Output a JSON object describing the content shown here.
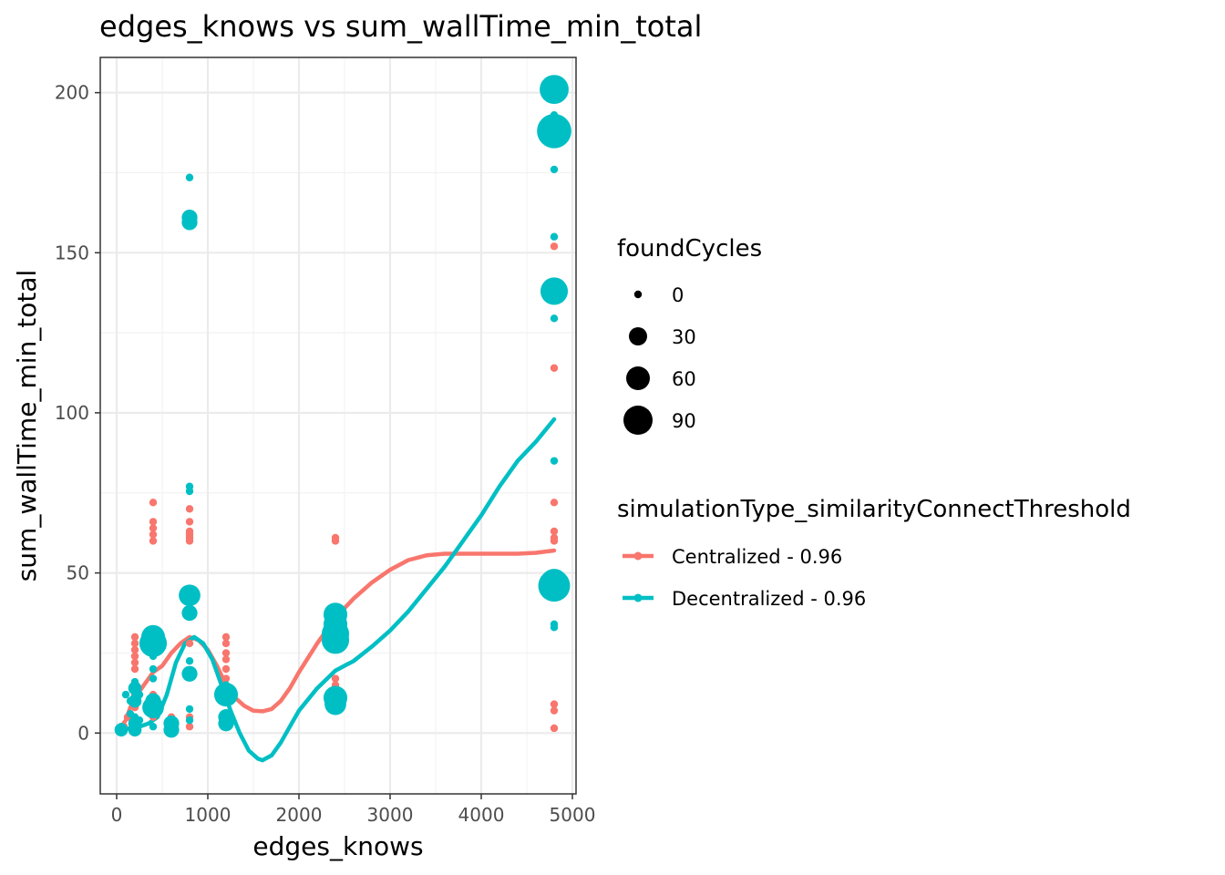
{
  "chart_data": {
    "type": "scatter",
    "title": "edges_knows  vs  sum_wallTime_min_total",
    "xlabel": "edges_knows",
    "ylabel": "sum_wallTime_min_total",
    "xlim": [
      -180,
      5040
    ],
    "ylim": [
      -19,
      211
    ],
    "x_ticks": [
      0,
      1000,
      2000,
      3000,
      4000,
      5000
    ],
    "x_tick_labels": [
      "0",
      "1000",
      "2000",
      "3000",
      "4000",
      "5000"
    ],
    "y_ticks": [
      0,
      50,
      100,
      150,
      200
    ],
    "y_tick_labels": [
      "0",
      "50",
      "100",
      "150",
      "200"
    ],
    "grid": true,
    "legend_position": "right",
    "size_legend": {
      "title": "foundCycles",
      "entries": [
        {
          "label": "0",
          "value": 0
        },
        {
          "label": "30",
          "value": 30
        },
        {
          "label": "60",
          "value": 60
        },
        {
          "label": "90",
          "value": 90
        }
      ]
    },
    "series": [
      {
        "name": "Centralized - 0.96",
        "color": "#f8766d",
        "points": [
          {
            "x": 50,
            "y": 1,
            "c": 0
          },
          {
            "x": 80,
            "y": 2,
            "c": 0
          },
          {
            "x": 120,
            "y": 5,
            "c": 0
          },
          {
            "x": 200,
            "y": 30,
            "c": 0
          },
          {
            "x": 200,
            "y": 28,
            "c": 0
          },
          {
            "x": 200,
            "y": 26,
            "c": 0
          },
          {
            "x": 200,
            "y": 24,
            "c": 0
          },
          {
            "x": 200,
            "y": 22,
            "c": 0
          },
          {
            "x": 200,
            "y": 20,
            "c": 0
          },
          {
            "x": 200,
            "y": 15,
            "c": 0
          },
          {
            "x": 200,
            "y": 12,
            "c": 0
          },
          {
            "x": 200,
            "y": 8,
            "c": 0
          },
          {
            "x": 200,
            "y": 4,
            "c": 0
          },
          {
            "x": 400,
            "y": 72,
            "c": 0
          },
          {
            "x": 400,
            "y": 66,
            "c": 0
          },
          {
            "x": 400,
            "y": 64,
            "c": 0
          },
          {
            "x": 400,
            "y": 62,
            "c": 0
          },
          {
            "x": 400,
            "y": 60,
            "c": 0
          },
          {
            "x": 400,
            "y": 30,
            "c": 0
          },
          {
            "x": 400,
            "y": 12,
            "c": 0
          },
          {
            "x": 400,
            "y": 5,
            "c": 0
          },
          {
            "x": 600,
            "y": 5,
            "c": 0
          },
          {
            "x": 600,
            "y": 3,
            "c": 0
          },
          {
            "x": 800,
            "y": 70,
            "c": 0
          },
          {
            "x": 800,
            "y": 66,
            "c": 0
          },
          {
            "x": 800,
            "y": 63,
            "c": 0
          },
          {
            "x": 800,
            "y": 62,
            "c": 0
          },
          {
            "x": 800,
            "y": 61,
            "c": 0
          },
          {
            "x": 800,
            "y": 60,
            "c": 0
          },
          {
            "x": 800,
            "y": 28,
            "c": 0
          },
          {
            "x": 800,
            "y": 5,
            "c": 0
          },
          {
            "x": 800,
            "y": 2,
            "c": 0
          },
          {
            "x": 1200,
            "y": 30,
            "c": 0
          },
          {
            "x": 1200,
            "y": 28,
            "c": 0
          },
          {
            "x": 1200,
            "y": 25,
            "c": 0
          },
          {
            "x": 1200,
            "y": 23,
            "c": 0
          },
          {
            "x": 1200,
            "y": 20,
            "c": 0
          },
          {
            "x": 1200,
            "y": 17,
            "c": 0
          },
          {
            "x": 1200,
            "y": 10,
            "c": 0
          },
          {
            "x": 2400,
            "y": 61,
            "c": 0
          },
          {
            "x": 2400,
            "y": 60,
            "c": 0
          },
          {
            "x": 2400,
            "y": 17,
            "c": 0
          },
          {
            "x": 2400,
            "y": 15,
            "c": 0
          },
          {
            "x": 2400,
            "y": 13,
            "c": 0
          },
          {
            "x": 4800,
            "y": 152,
            "c": 0
          },
          {
            "x": 4800,
            "y": 114,
            "c": 0
          },
          {
            "x": 4800,
            "y": 72,
            "c": 0
          },
          {
            "x": 4800,
            "y": 63,
            "c": 0
          },
          {
            "x": 4800,
            "y": 61,
            "c": 0
          },
          {
            "x": 4800,
            "y": 60,
            "c": 0
          },
          {
            "x": 4800,
            "y": 9,
            "c": 0
          },
          {
            "x": 4800,
            "y": 7,
            "c": 0
          },
          {
            "x": 4800,
            "y": 1.5,
            "c": 0
          }
        ],
        "smooth": [
          {
            "x": 50,
            "y": 2
          },
          {
            "x": 100,
            "y": 4
          },
          {
            "x": 150,
            "y": 8
          },
          {
            "x": 200,
            "y": 11
          },
          {
            "x": 300,
            "y": 15
          },
          {
            "x": 400,
            "y": 19
          },
          {
            "x": 500,
            "y": 21
          },
          {
            "x": 600,
            "y": 25
          },
          {
            "x": 700,
            "y": 28
          },
          {
            "x": 800,
            "y": 30
          },
          {
            "x": 900,
            "y": 29
          },
          {
            "x": 1000,
            "y": 26
          },
          {
            "x": 1100,
            "y": 21
          },
          {
            "x": 1200,
            "y": 15
          },
          {
            "x": 1300,
            "y": 11
          },
          {
            "x": 1400,
            "y": 8.5
          },
          {
            "x": 1500,
            "y": 7
          },
          {
            "x": 1600,
            "y": 6.8
          },
          {
            "x": 1700,
            "y": 7.5
          },
          {
            "x": 1800,
            "y": 10
          },
          {
            "x": 1900,
            "y": 14
          },
          {
            "x": 2000,
            "y": 19
          },
          {
            "x": 2200,
            "y": 28
          },
          {
            "x": 2400,
            "y": 36
          },
          {
            "x": 2600,
            "y": 42
          },
          {
            "x": 2800,
            "y": 47
          },
          {
            "x": 3000,
            "y": 51
          },
          {
            "x": 3200,
            "y": 54
          },
          {
            "x": 3400,
            "y": 55.5
          },
          {
            "x": 3600,
            "y": 56
          },
          {
            "x": 3800,
            "y": 56
          },
          {
            "x": 4000,
            "y": 56
          },
          {
            "x": 4200,
            "y": 56
          },
          {
            "x": 4400,
            "y": 56
          },
          {
            "x": 4600,
            "y": 56.3
          },
          {
            "x": 4800,
            "y": 57
          }
        ]
      },
      {
        "name": "Decentralized - 0.96",
        "color": "#00bfc4",
        "points": [
          {
            "x": 50,
            "y": 1,
            "c": 5
          },
          {
            "x": 50,
            "y": 2,
            "c": 0
          },
          {
            "x": 80,
            "y": 1,
            "c": 0
          },
          {
            "x": 100,
            "y": 12,
            "c": 0
          },
          {
            "x": 150,
            "y": 10,
            "c": 0
          },
          {
            "x": 150,
            "y": 6,
            "c": 0
          },
          {
            "x": 200,
            "y": 16,
            "c": 0
          },
          {
            "x": 200,
            "y": 14,
            "c": 5
          },
          {
            "x": 200,
            "y": 10,
            "c": 5
          },
          {
            "x": 200,
            "y": 5,
            "c": 0
          },
          {
            "x": 200,
            "y": 3,
            "c": 5
          },
          {
            "x": 200,
            "y": 1,
            "c": 5
          },
          {
            "x": 250,
            "y": 12,
            "c": 0
          },
          {
            "x": 250,
            "y": 4,
            "c": 0
          },
          {
            "x": 400,
            "y": 30,
            "c": 40
          },
          {
            "x": 400,
            "y": 28,
            "c": 60
          },
          {
            "x": 400,
            "y": 24,
            "c": 0
          },
          {
            "x": 400,
            "y": 20,
            "c": 0
          },
          {
            "x": 400,
            "y": 17,
            "c": 0
          },
          {
            "x": 400,
            "y": 10,
            "c": 10
          },
          {
            "x": 400,
            "y": 8,
            "c": 30
          },
          {
            "x": 400,
            "y": 2,
            "c": 0
          },
          {
            "x": 600,
            "y": 3,
            "c": 10
          },
          {
            "x": 600,
            "y": 1,
            "c": 10
          },
          {
            "x": 800,
            "y": 173.5,
            "c": 0
          },
          {
            "x": 800,
            "y": 161,
            "c": 10
          },
          {
            "x": 800,
            "y": 159.5,
            "c": 10
          },
          {
            "x": 800,
            "y": 77,
            "c": 0
          },
          {
            "x": 800,
            "y": 75.5,
            "c": 0
          },
          {
            "x": 800,
            "y": 43,
            "c": 30
          },
          {
            "x": 800,
            "y": 37.5,
            "c": 10
          },
          {
            "x": 800,
            "y": 22.5,
            "c": 0
          },
          {
            "x": 800,
            "y": 18.5,
            "c": 10
          },
          {
            "x": 800,
            "y": 7.5,
            "c": 0
          },
          {
            "x": 800,
            "y": 4,
            "c": 0
          },
          {
            "x": 1200,
            "y": 15,
            "c": 0
          },
          {
            "x": 1200,
            "y": 14,
            "c": 0
          },
          {
            "x": 1200,
            "y": 12,
            "c": 40
          },
          {
            "x": 1200,
            "y": 5,
            "c": 10
          },
          {
            "x": 1200,
            "y": 3,
            "c": 10
          },
          {
            "x": 2400,
            "y": 37,
            "c": 40
          },
          {
            "x": 2400,
            "y": 34,
            "c": 40
          },
          {
            "x": 2400,
            "y": 31,
            "c": 60
          },
          {
            "x": 2400,
            "y": 29,
            "c": 60
          },
          {
            "x": 2400,
            "y": 11,
            "c": 40
          },
          {
            "x": 2400,
            "y": 9,
            "c": 30
          },
          {
            "x": 4800,
            "y": 201,
            "c": 70
          },
          {
            "x": 4800,
            "y": 193,
            "c": 0
          },
          {
            "x": 4800,
            "y": 188,
            "c": 110
          },
          {
            "x": 4800,
            "y": 176,
            "c": 0
          },
          {
            "x": 4800,
            "y": 155,
            "c": 0
          },
          {
            "x": 4800,
            "y": 138,
            "c": 60
          },
          {
            "x": 4800,
            "y": 129.5,
            "c": 0
          },
          {
            "x": 4800,
            "y": 85,
            "c": 0
          },
          {
            "x": 4800,
            "y": 47,
            "c": 60
          },
          {
            "x": 4800,
            "y": 46,
            "c": 90
          },
          {
            "x": 4800,
            "y": 34,
            "c": 0
          },
          {
            "x": 4800,
            "y": 33,
            "c": 0
          }
        ],
        "smooth": [
          {
            "x": 50,
            "y": 1
          },
          {
            "x": 150,
            "y": 1.5
          },
          {
            "x": 250,
            "y": 2
          },
          {
            "x": 350,
            "y": 3
          },
          {
            "x": 450,
            "y": 5
          },
          {
            "x": 550,
            "y": 12
          },
          {
            "x": 650,
            "y": 22
          },
          {
            "x": 750,
            "y": 28
          },
          {
            "x": 850,
            "y": 30
          },
          {
            "x": 950,
            "y": 28
          },
          {
            "x": 1050,
            "y": 23
          },
          {
            "x": 1150,
            "y": 15
          },
          {
            "x": 1250,
            "y": 7
          },
          {
            "x": 1350,
            "y": 0
          },
          {
            "x": 1450,
            "y": -5.5
          },
          {
            "x": 1550,
            "y": -8
          },
          {
            "x": 1600,
            "y": -8.5
          },
          {
            "x": 1700,
            "y": -7
          },
          {
            "x": 1800,
            "y": -3
          },
          {
            "x": 1900,
            "y": 2
          },
          {
            "x": 2000,
            "y": 7
          },
          {
            "x": 2200,
            "y": 14
          },
          {
            "x": 2400,
            "y": 19.5
          },
          {
            "x": 2600,
            "y": 22.5
          },
          {
            "x": 2800,
            "y": 27
          },
          {
            "x": 3000,
            "y": 32
          },
          {
            "x": 3200,
            "y": 38
          },
          {
            "x": 3400,
            "y": 45
          },
          {
            "x": 3600,
            "y": 52
          },
          {
            "x": 3800,
            "y": 60
          },
          {
            "x": 4000,
            "y": 68
          },
          {
            "x": 4200,
            "y": 77
          },
          {
            "x": 4400,
            "y": 85
          },
          {
            "x": 4600,
            "y": 91
          },
          {
            "x": 4800,
            "y": 98
          }
        ]
      }
    ],
    "color_legend": {
      "title": "simulationType_similarityConnectThreshold",
      "entries": [
        "Centralized - 0.96",
        "Decentralized - 0.96"
      ]
    }
  }
}
